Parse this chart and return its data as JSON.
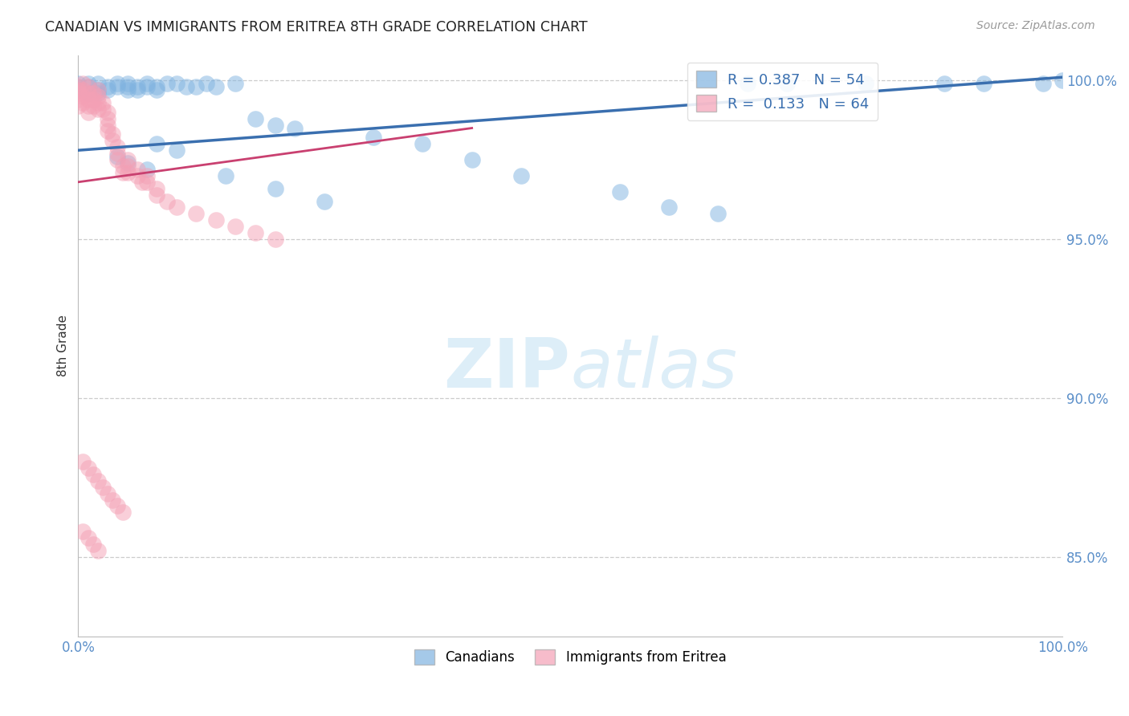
{
  "title": "CANADIAN VS IMMIGRANTS FROM ERITREA 8TH GRADE CORRELATION CHART",
  "source": "Source: ZipAtlas.com",
  "ylabel": "8th Grade",
  "xmin": 0.0,
  "xmax": 1.0,
  "ymin": 0.825,
  "ymax": 1.008,
  "yticks": [
    0.85,
    0.9,
    0.95,
    1.0
  ],
  "ytick_labels": [
    "85.0%",
    "90.0%",
    "95.0%",
    "100.0%"
  ],
  "xticks": [
    0.0,
    0.25,
    0.5,
    0.75,
    1.0
  ],
  "xtick_labels": [
    "0.0%",
    "",
    "",
    "",
    "100.0%"
  ],
  "legend_R_blue": "0.387",
  "legend_N_blue": "54",
  "legend_R_pink": "0.133",
  "legend_N_pink": "64",
  "blue_color": "#7fb3e0",
  "pink_color": "#f4a0b5",
  "trend_blue_color": "#3a6faf",
  "trend_pink_color": "#c94070",
  "watermark_color": "#ddeef8",
  "blue_trend_x0": 0.0,
  "blue_trend_y0": 0.978,
  "blue_trend_x1": 1.0,
  "blue_trend_y1": 1.001,
  "pink_trend_x0": 0.0,
  "pink_trend_y0": 0.968,
  "pink_trend_x1": 0.4,
  "pink_trend_y1": 0.985,
  "blue_x": [
    0.0,
    0.0,
    0.0,
    0.01,
    0.01,
    0.01,
    0.02,
    0.02,
    0.02,
    0.03,
    0.03,
    0.04,
    0.04,
    0.05,
    0.05,
    0.05,
    0.06,
    0.06,
    0.07,
    0.07,
    0.08,
    0.08,
    0.09,
    0.1,
    0.11,
    0.12,
    0.13,
    0.14,
    0.16,
    0.18,
    0.2,
    0.22,
    0.3,
    0.35,
    0.4,
    0.45,
    0.55,
    0.6,
    0.65,
    0.68,
    0.72,
    0.8,
    0.88,
    0.92,
    0.98,
    1.0,
    0.04,
    0.05,
    0.07,
    0.08,
    0.1,
    0.15,
    0.2,
    0.25
  ],
  "blue_y": [
    0.999,
    0.998,
    0.997,
    0.999,
    0.998,
    0.996,
    0.999,
    0.997,
    0.996,
    0.998,
    0.997,
    0.999,
    0.998,
    0.999,
    0.998,
    0.997,
    0.998,
    0.997,
    0.999,
    0.998,
    0.998,
    0.997,
    0.999,
    0.999,
    0.998,
    0.998,
    0.999,
    0.998,
    0.999,
    0.988,
    0.986,
    0.985,
    0.982,
    0.98,
    0.975,
    0.97,
    0.965,
    0.96,
    0.958,
    0.999,
    0.999,
    0.999,
    0.999,
    0.999,
    0.999,
    1.0,
    0.976,
    0.974,
    0.972,
    0.98,
    0.978,
    0.97,
    0.966,
    0.962
  ],
  "pink_x": [
    0.0,
    0.0,
    0.0,
    0.0,
    0.0,
    0.005,
    0.005,
    0.005,
    0.005,
    0.01,
    0.01,
    0.01,
    0.01,
    0.01,
    0.015,
    0.015,
    0.015,
    0.02,
    0.02,
    0.02,
    0.02,
    0.025,
    0.025,
    0.03,
    0.03,
    0.03,
    0.03,
    0.035,
    0.035,
    0.04,
    0.04,
    0.04,
    0.045,
    0.045,
    0.05,
    0.05,
    0.05,
    0.06,
    0.06,
    0.065,
    0.07,
    0.07,
    0.08,
    0.08,
    0.09,
    0.1,
    0.12,
    0.14,
    0.16,
    0.18,
    0.2,
    0.005,
    0.01,
    0.015,
    0.02,
    0.025,
    0.03,
    0.035,
    0.04,
    0.045,
    0.005,
    0.01,
    0.015,
    0.02
  ],
  "pink_y": [
    0.998,
    0.997,
    0.996,
    0.994,
    0.992,
    0.999,
    0.997,
    0.995,
    0.993,
    0.998,
    0.996,
    0.994,
    0.992,
    0.99,
    0.996,
    0.994,
    0.992,
    0.997,
    0.995,
    0.993,
    0.991,
    0.993,
    0.991,
    0.99,
    0.988,
    0.986,
    0.984,
    0.983,
    0.981,
    0.979,
    0.977,
    0.975,
    0.973,
    0.971,
    0.975,
    0.973,
    0.971,
    0.972,
    0.97,
    0.968,
    0.97,
    0.968,
    0.966,
    0.964,
    0.962,
    0.96,
    0.958,
    0.956,
    0.954,
    0.952,
    0.95,
    0.88,
    0.878,
    0.876,
    0.874,
    0.872,
    0.87,
    0.868,
    0.866,
    0.864,
    0.858,
    0.856,
    0.854,
    0.852
  ]
}
